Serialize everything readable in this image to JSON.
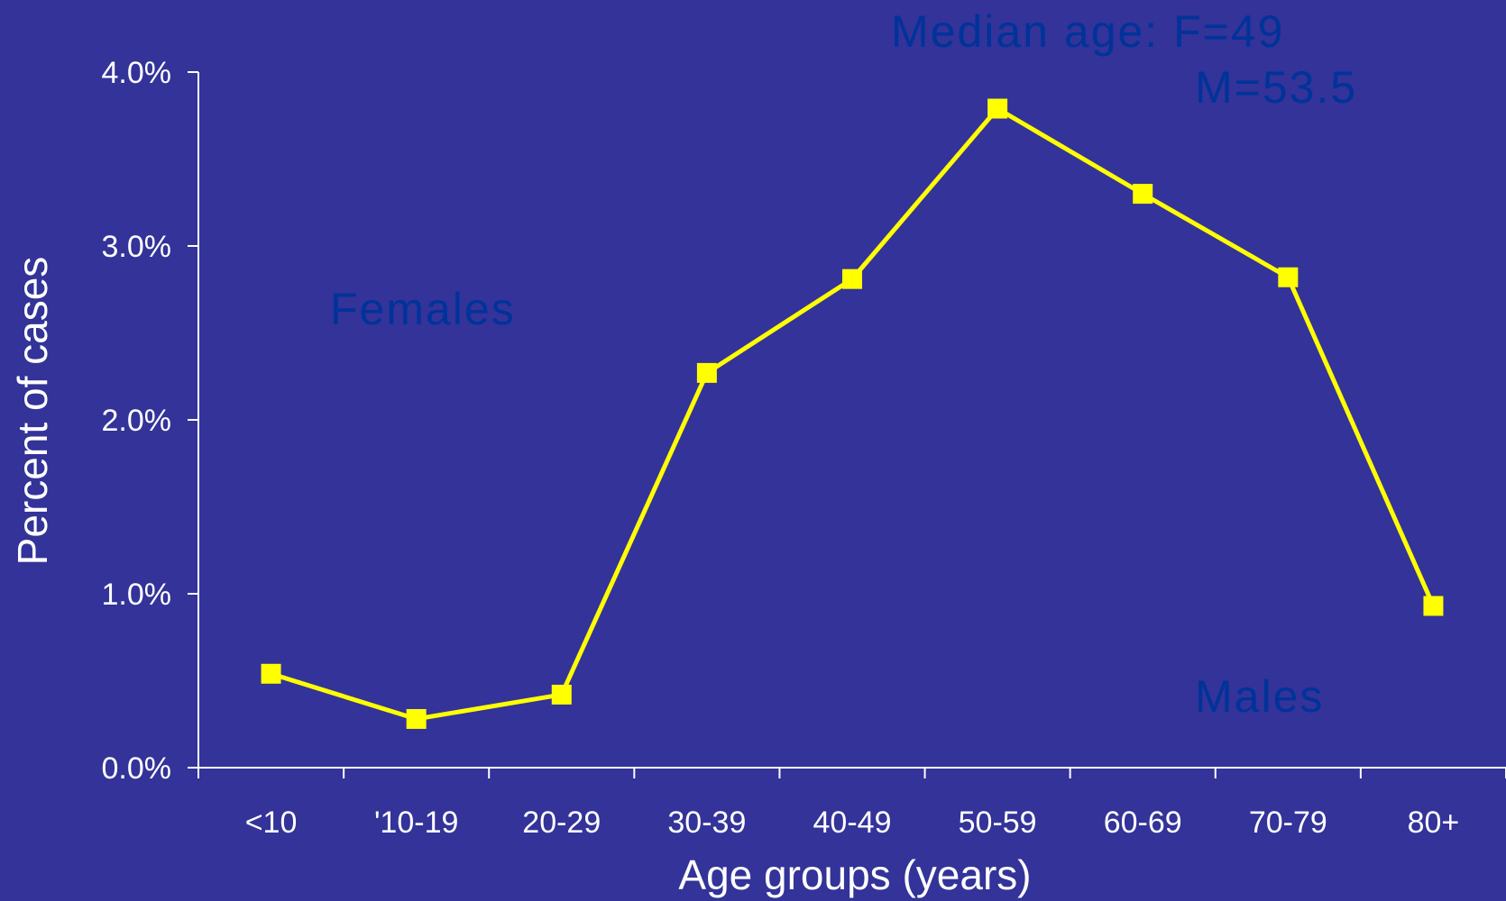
{
  "colors": {
    "background": "#333399",
    "line": "#ffff00",
    "axis": "#ffffff",
    "annotation": "#003399"
  },
  "chart_data": {
    "type": "line",
    "title": "",
    "xlabel": "Age groups (years)",
    "ylabel": "Percent of cases",
    "categories": [
      "<10",
      "'10-19",
      "20-29",
      "30-39",
      "40-49",
      "50-59",
      "60-69",
      "70-79",
      "80+"
    ],
    "values": [
      0.54,
      0.28,
      0.42,
      2.27,
      2.81,
      3.79,
      3.3,
      2.82,
      0.93
    ],
    "ylim": [
      0,
      4
    ],
    "yticks": [
      "0.0%",
      "1.0%",
      "2.0%",
      "3.0%",
      "4.0%"
    ],
    "marker": "square",
    "grid": false,
    "annotations": {
      "median_line1": "Median age: F=49",
      "median_line2": "M=53.5",
      "females": "Females",
      "males": "Males"
    }
  }
}
